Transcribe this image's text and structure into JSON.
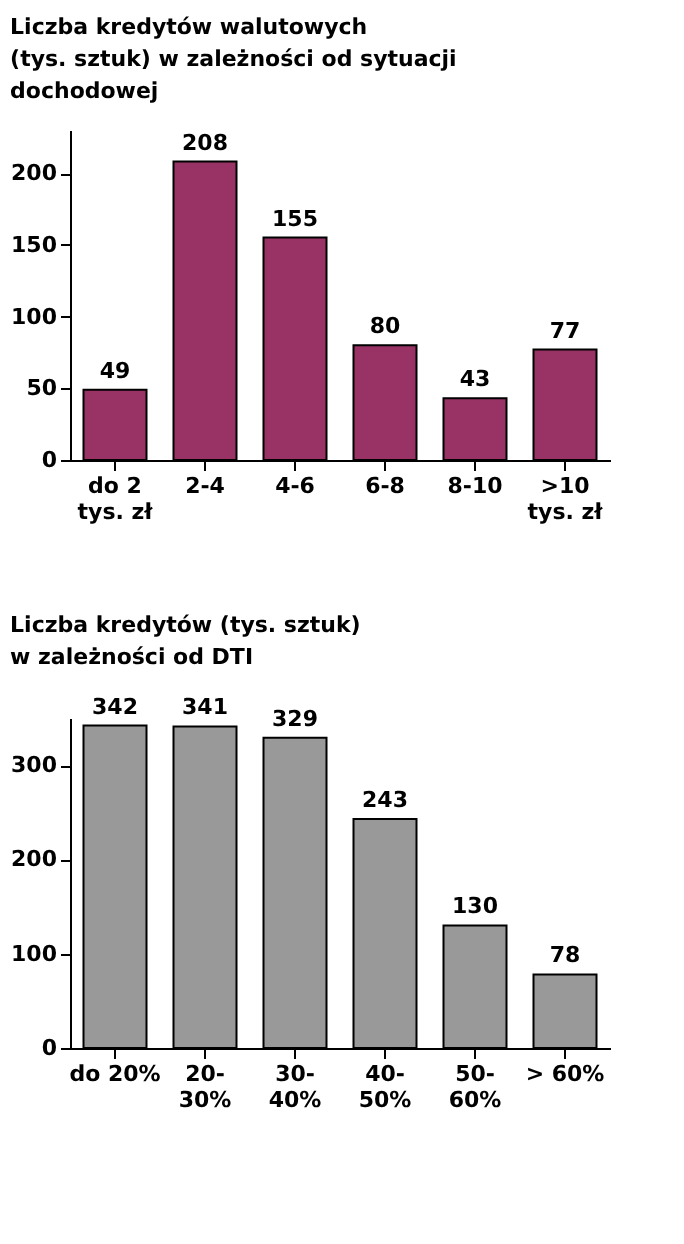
{
  "chart_data": [
    {
      "type": "bar",
      "title": "Liczba kredytów walutowych\n(tys. sztuk) w zależności od sytuacji\ndochodowej",
      "categories": [
        "do 2\ntys. zł",
        "2-4",
        "4-6",
        "6-8",
        "8-10",
        ">10\ntys. zł"
      ],
      "values": [
        49,
        208,
        155,
        80,
        43,
        77
      ],
      "color": "#993366",
      "ylim": [
        0,
        230
      ],
      "yticks": [
        0,
        50,
        100,
        150,
        200
      ],
      "data_labels": true,
      "grid": false
    },
    {
      "type": "bar",
      "title": "Liczba kredytów  (tys. sztuk)\n      w zależności od DTI",
      "categories": [
        "do 20%",
        "20-\n30%",
        "30-\n40%",
        "40-\n50%",
        "50-\n60%",
        "> 60%"
      ],
      "values": [
        342,
        341,
        329,
        243,
        130,
        78
      ],
      "color": "#999999",
      "ylim": [
        0,
        350
      ],
      "yticks": [
        0,
        100,
        200,
        300
      ],
      "data_labels": true,
      "grid": false
    }
  ]
}
